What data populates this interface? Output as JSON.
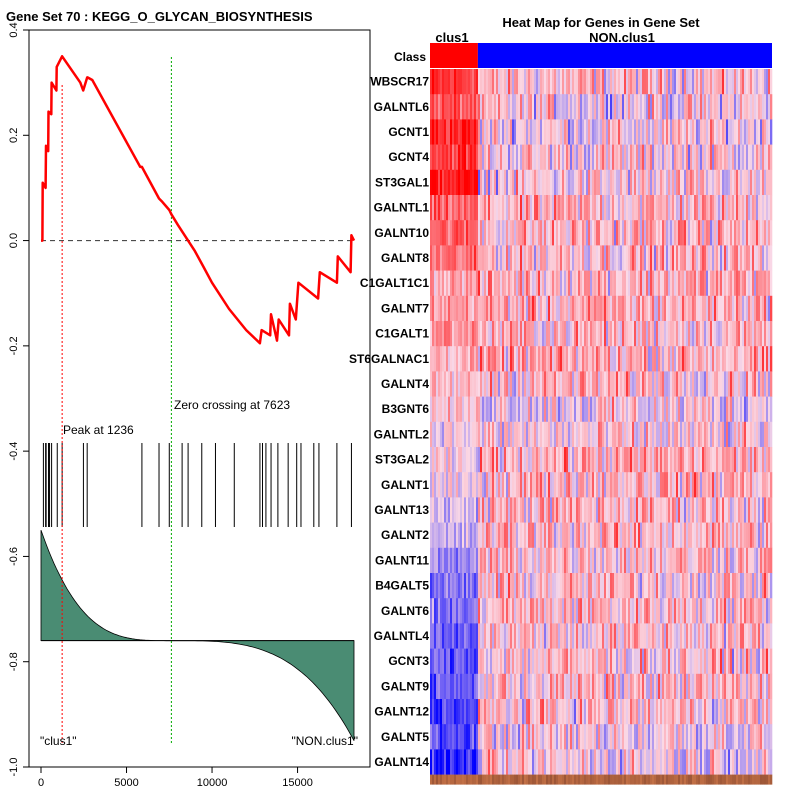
{
  "colors": {
    "es_line": "#ff0000",
    "zero_line": "#333333",
    "peak_marker": "#ff0000",
    "zero_cross_marker": "#00aa00",
    "hit_ticks": "#000000",
    "metric_fill": "#4a8c73",
    "class_clus1": "#ff0000",
    "class_non": "#0000ff",
    "heat_low": "#0000ff",
    "heat_mid": "#fbd9e6",
    "heat_high": "#ff0000"
  },
  "chart_data": [
    {
      "type": "line",
      "title": "Gene Set  70 : KEGG_O_GLYCAN_BIOSYNTHESIS",
      "xlim": [
        0,
        18500
      ],
      "ylim": [
        -1.0,
        0.4
      ],
      "x_ticks": [
        0,
        5000,
        10000,
        15000
      ],
      "x_tick_labels": [
        "0",
        "5000",
        "10000",
        "15000"
      ],
      "y_ticks": [
        0.4,
        0.2,
        0.0,
        -0.2,
        -0.4,
        -0.6,
        -0.8,
        -1.0
      ],
      "y_tick_labels": [
        "0.4",
        "0.2",
        "0.0",
        "-0.2",
        "-0.4",
        "-0.6",
        "-0.8",
        "-1.0"
      ],
      "grid": false,
      "zero_line_y": 0.0,
      "peak": {
        "x": 1236,
        "label": "Peak at 1236"
      },
      "zero_crossing": {
        "x": 7623,
        "label": "Zero crossing at 7623"
      },
      "series": [
        {
          "x": [
            0,
            80,
            100,
            270,
            290,
            420,
            440,
            600,
            620,
            900,
            920,
            1236,
            2300,
            2470,
            2700,
            2720,
            3000,
            5800,
            5900,
            6900,
            7050,
            7500,
            7623,
            8000,
            9000,
            9500,
            10000,
            11000,
            12000,
            12800,
            12900,
            13400,
            13450,
            13800,
            13900,
            14500,
            14550,
            14900,
            15050,
            16200,
            16300,
            17300,
            17350,
            18100,
            18150,
            18300
          ],
          "y": [
            0.0,
            0.0,
            0.11,
            0.1,
            0.18,
            0.17,
            0.245,
            0.24,
            0.3,
            0.285,
            0.33,
            0.35,
            0.3,
            0.285,
            0.31,
            0.31,
            0.305,
            0.14,
            0.14,
            0.08,
            0.075,
            0.058,
            0.05,
            0.03,
            -0.02,
            -0.05,
            -0.08,
            -0.13,
            -0.17,
            -0.195,
            -0.17,
            -0.18,
            -0.14,
            -0.19,
            -0.15,
            -0.18,
            -0.12,
            -0.15,
            -0.08,
            -0.11,
            -0.06,
            -0.08,
            -0.03,
            -0.06,
            0.01,
            0.0
          ]
        }
      ],
      "hits": [
        140,
        270,
        300,
        440,
        500,
        620,
        950,
        1236,
        2480,
        2700,
        5900,
        6900,
        7500,
        8250,
        8600,
        9400,
        10200,
        11300,
        12800,
        12950,
        13150,
        13450,
        13850,
        14450,
        14950,
        15200,
        15950,
        16250,
        17300,
        18150
      ],
      "metric": {
        "baseline_y": -0.76,
        "start_y": -0.55,
        "end_y": -0.95,
        "neutral_x": 7623,
        "label_left": "\"clus1\"",
        "label_right": "\"NON.clus1\""
      }
    },
    {
      "type": "heatmap",
      "title": "Heat Map for Genes in Gene Set",
      "class_row_label": "Class",
      "class_labels": [
        "clus1",
        "NON.clus1"
      ],
      "class_split_fraction": 0.14,
      "rows": [
        "WBSCR17",
        "GALNTL6",
        "GCNT1",
        "GCNT4",
        "ST3GAL1",
        "GALNTL1",
        "GALNT10",
        "GALNT8",
        "C1GALT1C1",
        "GALNT7",
        "C1GALT1",
        "ST6GALNAC1",
        "GALNT4",
        "B3GNT6",
        "GALNTL2",
        "ST3GAL2",
        "GALNT1",
        "GALNT13",
        "GALNT2",
        "GALNT11",
        "B4GALT5",
        "GALNT6",
        "GALNTL4",
        "GCNT3",
        "GALNT9",
        "GALNT12",
        "GALNT5",
        "GALNT14"
      ],
      "row_bias_clus1": [
        0.75,
        0.6,
        0.85,
        0.75,
        0.9,
        0.5,
        0.55,
        0.45,
        0.25,
        0.3,
        0.35,
        0.2,
        0.1,
        0.05,
        0.0,
        -0.05,
        -0.1,
        -0.15,
        -0.25,
        -0.4,
        -0.5,
        -0.5,
        -0.55,
        -0.6,
        -0.6,
        -0.7,
        -0.65,
        -0.85
      ],
      "row_bias_non": [
        0.1,
        0.0,
        0.0,
        0.05,
        0.0,
        0.15,
        0.15,
        0.15,
        0.2,
        0.2,
        0.15,
        0.2,
        0.15,
        0.0,
        0.0,
        0.2,
        0.2,
        0.15,
        0.15,
        0.15,
        0.1,
        0.15,
        0.1,
        0.1,
        0.1,
        0.1,
        0.0,
        0.0
      ]
    }
  ]
}
